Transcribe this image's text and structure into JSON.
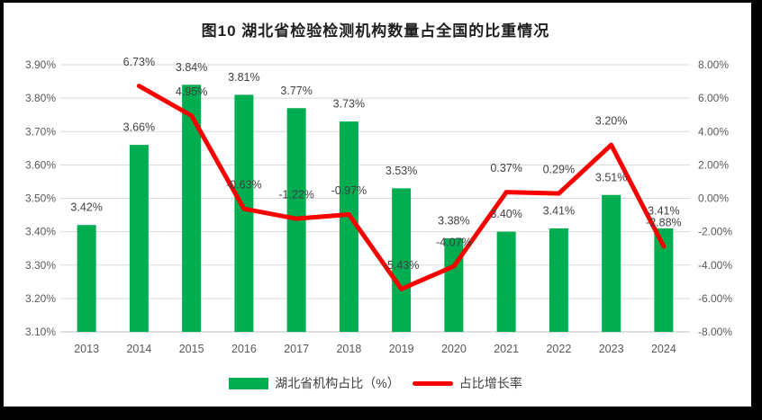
{
  "title": "图10 湖北省检验检测机构数量占全国的比重情况",
  "legend": [
    {
      "label": "湖北省机构占比（%）",
      "swatch": "bar-swatch"
    },
    {
      "label": "占比增长率",
      "swatch": "line-swatch"
    }
  ],
  "colors": {
    "bar": "#00AD50",
    "line": "#F80000",
    "grid": "#D9D9D9",
    "axis_line": "#BFBFBF",
    "tick_text": "#595959",
    "data_label_text": "#404040",
    "frame": "#000000",
    "background": "#FFFFFF"
  },
  "chart_data": {
    "type": "combo",
    "title": "图10 湖北省检验检测机构数量占全国的比重情况",
    "categories": [
      "2013",
      "2014",
      "2015",
      "2016",
      "2017",
      "2018",
      "2019",
      "2020",
      "2021",
      "2022",
      "2023",
      "2024"
    ],
    "series": [
      {
        "name": "湖北省机构占比（%）",
        "type": "bar",
        "axis": "left",
        "values": [
          3.42,
          3.66,
          3.84,
          3.81,
          3.77,
          3.73,
          3.53,
          3.38,
          3.4,
          3.41,
          3.51,
          3.41
        ],
        "labels": [
          "3.42%",
          "3.66%",
          "3.84%",
          "3.81%",
          "3.77%",
          "3.73%",
          "3.53%",
          "3.38%",
          "3.40%",
          "3.41%",
          "3.51%",
          "3.41%"
        ]
      },
      {
        "name": "占比增长率",
        "type": "line",
        "axis": "right",
        "values": [
          null,
          6.73,
          4.95,
          -0.63,
          -1.22,
          -0.97,
          -5.43,
          -4.07,
          0.37,
          0.29,
          3.2,
          -2.88
        ],
        "labels": [
          null,
          "6.73%",
          "4.95%",
          "-0.63%",
          "-1.22%",
          "-0.97%",
          "-5.43%",
          "-4.07%",
          "0.37%",
          "0.29%",
          "3.20%",
          "-2.88%"
        ]
      }
    ],
    "left_axis": {
      "min": 3.1,
      "max": 3.9,
      "ticks": [
        "3.90%",
        "3.80%",
        "3.70%",
        "3.60%",
        "3.50%",
        "3.40%",
        "3.30%",
        "3.20%",
        "3.10%"
      ]
    },
    "right_axis": {
      "min": -8.0,
      "max": 8.0,
      "ticks": [
        "8.00%",
        "6.00%",
        "4.00%",
        "2.00%",
        "0.00%",
        "-2.00%",
        "-4.00%",
        "-6.00%",
        "-8.00%"
      ]
    },
    "grid": true,
    "legend_position": "bottom"
  }
}
